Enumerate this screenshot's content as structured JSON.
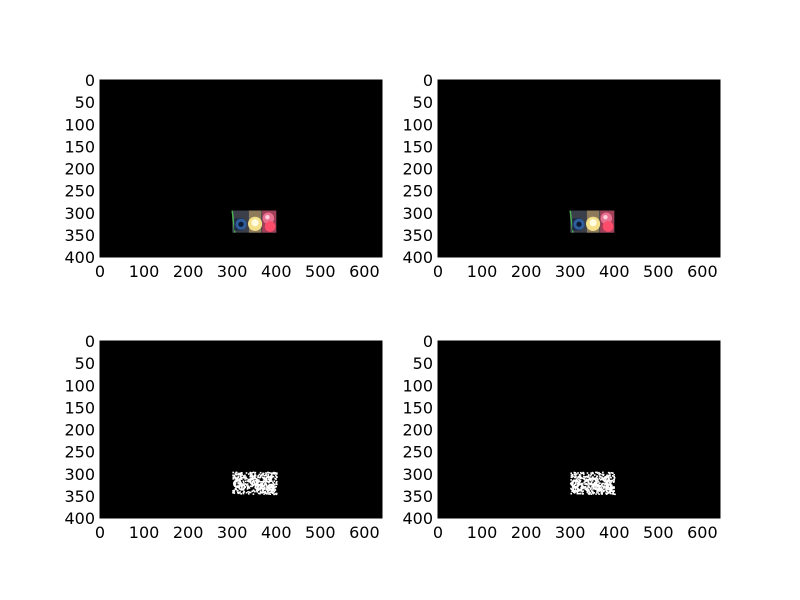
{
  "chart_data": [
    {
      "type": "image",
      "title": "",
      "xlabel": "",
      "ylabel": "",
      "xlim": [
        0,
        640
      ],
      "ylim": [
        400,
        0
      ],
      "x_ticks": [
        0,
        100,
        200,
        300,
        400,
        500,
        600
      ],
      "y_ticks": [
        0,
        50,
        100,
        150,
        200,
        250,
        300,
        350,
        400
      ],
      "background": "#000000",
      "region": {
        "x": [
          300,
          400
        ],
        "y": [
          295,
          345
        ]
      },
      "content": "color-crop"
    },
    {
      "type": "image",
      "title": "",
      "xlabel": "",
      "ylabel": "",
      "xlim": [
        0,
        640
      ],
      "ylim": [
        400,
        0
      ],
      "x_ticks": [
        0,
        100,
        200,
        300,
        400,
        500,
        600
      ],
      "y_ticks": [
        0,
        50,
        100,
        150,
        200,
        250,
        300,
        350,
        400
      ],
      "background": "#000000",
      "region": {
        "x": [
          300,
          400
        ],
        "y": [
          295,
          345
        ]
      },
      "content": "color-crop"
    },
    {
      "type": "image",
      "title": "",
      "xlabel": "",
      "ylabel": "",
      "xlim": [
        0,
        640
      ],
      "ylim": [
        400,
        0
      ],
      "x_ticks": [
        0,
        100,
        200,
        300,
        400,
        500,
        600
      ],
      "y_ticks": [
        0,
        50,
        100,
        150,
        200,
        250,
        300,
        350,
        400
      ],
      "background": "#000000",
      "region": {
        "x": [
          300,
          400
        ],
        "y": [
          295,
          345
        ]
      },
      "content": "binary-mask"
    },
    {
      "type": "image",
      "title": "",
      "xlabel": "",
      "ylabel": "",
      "xlim": [
        0,
        640
      ],
      "ylim": [
        400,
        0
      ],
      "x_ticks": [
        0,
        100,
        200,
        300,
        400,
        500,
        600
      ],
      "y_ticks": [
        0,
        50,
        100,
        150,
        200,
        250,
        300,
        350,
        400
      ],
      "background": "#000000",
      "region": {
        "x": [
          300,
          400
        ],
        "y": [
          295,
          345
        ]
      },
      "content": "binary-mask"
    }
  ]
}
